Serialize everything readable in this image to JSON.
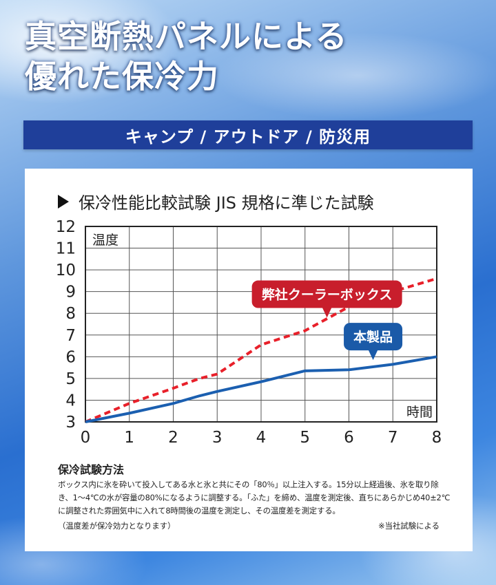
{
  "headline": {
    "line1": "真空断熱パネルによる",
    "line2": "優れた保冷力"
  },
  "banner": {
    "text": "キャンプ / アウトドア / 防災用"
  },
  "chart_title": "保冷性能比較試験 JIS 規格に準じた試験",
  "chart_data": {
    "type": "line",
    "title": "保冷性能比較試験 JIS 規格に準じた試験",
    "xlabel": "時間",
    "ylabel": "温度",
    "xlim": [
      0,
      8
    ],
    "ylim": [
      3,
      12
    ],
    "x_ticks": [
      0,
      1,
      2,
      3,
      4,
      5,
      6,
      7,
      8
    ],
    "y_ticks": [
      3,
      4,
      5,
      6,
      7,
      8,
      9,
      10,
      11,
      12
    ],
    "grid": true,
    "series": [
      {
        "name": "弊社クーラーボックス",
        "style": "dashed",
        "color": "#e8202a",
        "x": [
          0,
          1,
          2,
          2.6,
          3,
          4,
          5,
          6,
          7,
          8
        ],
        "y": [
          3,
          3.85,
          4.55,
          5.0,
          5.2,
          6.55,
          7.2,
          8.3,
          9.0,
          9.6
        ]
      },
      {
        "name": "本製品",
        "style": "solid",
        "color": "#1b5fb0",
        "x": [
          0,
          1,
          2,
          2.6,
          3,
          4,
          5,
          6,
          7,
          8
        ],
        "y": [
          3,
          3.4,
          3.85,
          4.2,
          4.4,
          4.85,
          5.35,
          5.4,
          5.65,
          6.0
        ]
      }
    ],
    "callouts": [
      {
        "label": "弊社クーラーボックス",
        "color": "#c81e2c",
        "x": 5.5,
        "y": 7.8
      },
      {
        "label": "本製品",
        "color": "#1a5aa8",
        "x": 6.55,
        "y": 5.85
      }
    ]
  },
  "method": {
    "title": "保冷試験方法",
    "body": "ボックス内に氷を砕いて投入してある水と氷と共にその「80％」以上注入する。15分以上経過後、氷を取り除き、1〜4℃の水が容量の80%になるように調整する。「ふた」を締め、温度を測定後、直ちにあらかじめ40±2℃に調整された雰囲気中に入れて8時間後の温度を測定し、その温度差を測定する。",
    "note": "（温度差が保冷効力となります）",
    "source": "※当社試験による"
  }
}
